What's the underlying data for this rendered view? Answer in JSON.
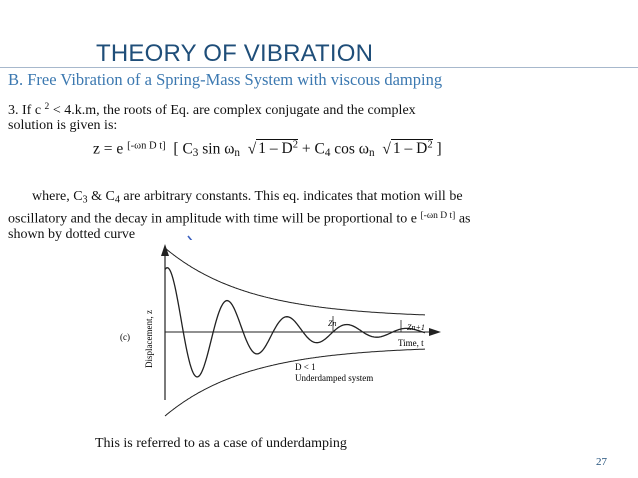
{
  "slide": {
    "title": "THEORY OF VIBRATION",
    "subtitle": "B. Free Vibration of a Spring-Mass System with viscous damping",
    "paragraph1": {
      "line1_prefix": "3. If c",
      "line1_sup": "2",
      "line1_suffix": " < 4.k.m, the roots of Eq. are complex conjugate and the complex",
      "line2": "solution is given is:"
    },
    "equation": {
      "lhs": "z = e",
      "exp": "[-ωn D t]",
      "open": "[ C",
      "c3": "3",
      "sin": " sin ω",
      "n1": "n",
      "root1": "1 – D",
      "sq1": "2",
      "plus": " + C",
      "c4": "4",
      "cos": " cos ω",
      "n2": "n",
      "root2": "1 – D",
      "sq2": "2",
      "close": " ]"
    },
    "paragraph2": {
      "l1_a": "where, C",
      "l1_b": "3",
      "l1_c": " & C",
      "l1_d": "4",
      "l1_e": " are arbitrary constants. This eq. indicates that motion will be",
      "l2_a": "oscillatory and the decay in amplitude with time will be proportional to e",
      "l2_b": "[-ωn D t]",
      "l2_c": " as",
      "l3": "shown by dotted curve"
    },
    "figure": {
      "panel_label": "(c)",
      "y_axis_label": "Displacement, z",
      "x_axis_label": "Time, t",
      "zn_label": "Zn",
      "zn1_label": "Zn+1",
      "d_label": "D < 1",
      "system_label": "Underdamped system"
    },
    "caption": "This is referred to as a case of underdamping",
    "page_number": "27",
    "colors": {
      "title": "#1f4e79",
      "subtitle": "#3b78b0",
      "arrow": "#3a5fbf"
    }
  }
}
